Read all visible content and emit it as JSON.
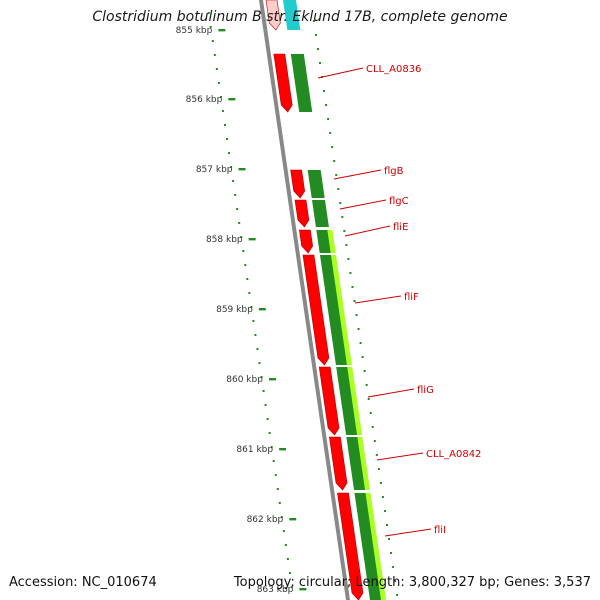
{
  "title": "Clostridium botulinum B str. Eklund 17B, complete genome",
  "accession": "Accession: NC_010674",
  "summary": "Topology: circular; Length: 3,800,327 bp; Genes: 3,537",
  "colors": {
    "gene_forward": "#ff0000",
    "gene_shadow": "#b30000",
    "cds_dark": "#228b22",
    "cds_light": "#aaff22",
    "backbone": "#888888",
    "tick": "#228b22",
    "label": "#cc0000",
    "top_accent": "#22cccc"
  },
  "scale": {
    "ticks": [
      {
        "label": "855 kbp",
        "kbp": 855
      },
      {
        "label": "856 kbp",
        "kbp": 856
      },
      {
        "label": "857 kbp",
        "kbp": 857
      },
      {
        "label": "858 kbp",
        "kbp": 858
      },
      {
        "label": "859 kbp",
        "kbp": 859
      },
      {
        "label": "860 kbp",
        "kbp": 860
      },
      {
        "label": "861 kbp",
        "kbp": 861
      },
      {
        "label": "862 kbp",
        "kbp": 862
      },
      {
        "label": "863 kbp",
        "kbp": 863
      }
    ]
  },
  "genes": [
    {
      "name": "CLL_A0836"
    },
    {
      "name": "flgB"
    },
    {
      "name": "flgC"
    },
    {
      "name": "fliE"
    },
    {
      "name": "fliF"
    },
    {
      "name": "fliG"
    },
    {
      "name": "CLL_A0842"
    },
    {
      "name": "fliI"
    }
  ]
}
